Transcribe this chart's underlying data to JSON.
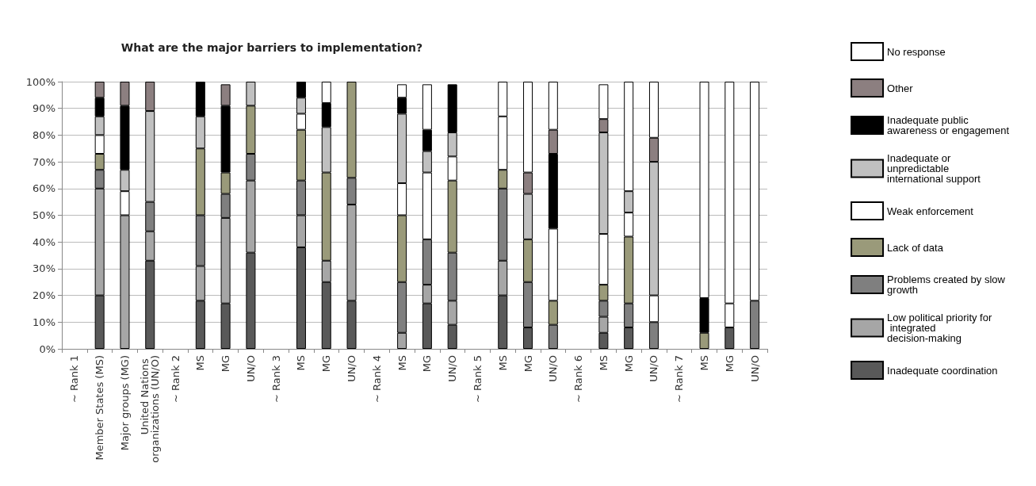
{
  "chart_data": {
    "type": "bar",
    "stacked": true,
    "title": "What are the major barriers to implementation?",
    "categories": [
      "~ Rank 1",
      "Member States (MS)",
      "Major groups (MG)",
      "United Nations organizations (UN/O)",
      "~ Rank 2",
      "MS",
      "MG",
      "UN/O",
      "~ Rank 3",
      "MS",
      "MG",
      "UN/O",
      "~ Rank 4",
      "MS",
      "MG",
      "UN/O",
      "~ Rank 5",
      "MS",
      "MG",
      "UN/O",
      "~ Rank 6",
      "MS",
      "MG",
      "UN/O",
      "~ Rank 7",
      "MS",
      "MG",
      "UN/O"
    ],
    "series": [
      {
        "name": "Inadequate coordination",
        "color": "#595959",
        "values": [
          null,
          20,
          0,
          33,
          null,
          18,
          17,
          36,
          null,
          38,
          25,
          18,
          null,
          0,
          17,
          9,
          null,
          20,
          8,
          0,
          null,
          6,
          8,
          0,
          null,
          0,
          8,
          0
        ]
      },
      {
        "name": "Low political priority for integrated decision-making",
        "color": "#a6a6a6",
        "values": [
          null,
          40,
          50,
          11,
          null,
          13,
          32,
          27,
          null,
          12,
          8,
          36,
          null,
          6,
          7,
          9,
          null,
          13,
          0,
          0,
          null,
          6,
          0,
          0,
          null,
          0,
          0,
          0
        ]
      },
      {
        "name": "Problems created by slow growth",
        "color": "#7f7f7f",
        "values": [
          null,
          7,
          0,
          11,
          null,
          19,
          9,
          10,
          null,
          13,
          0,
          10,
          null,
          19,
          17,
          18,
          null,
          27,
          17,
          9,
          null,
          6,
          9,
          10,
          null,
          0,
          0,
          18
        ]
      },
      {
        "name": "Lack of data",
        "color": "#9a9a7a",
        "values": [
          null,
          6,
          0,
          0,
          null,
          25,
          8,
          18,
          null,
          19,
          33,
          36,
          null,
          25,
          0,
          27,
          null,
          7,
          16,
          9,
          null,
          6,
          25,
          0,
          null,
          6,
          0,
          0
        ]
      },
      {
        "name": "Weak enforcement",
        "color": "#ffffff",
        "values": [
          null,
          7,
          9,
          0,
          null,
          0,
          0,
          0,
          null,
          6,
          0,
          0,
          null,
          12,
          25,
          9,
          null,
          20,
          0,
          27,
          null,
          19,
          9,
          10,
          null,
          0,
          9,
          0
        ]
      },
      {
        "name": "Inadequate or unpredictable international support",
        "color": "#c0c0c0",
        "values": [
          null,
          7,
          8,
          34,
          null,
          12,
          0,
          9,
          null,
          6,
          17,
          0,
          null,
          26,
          8,
          9,
          null,
          0,
          17,
          0,
          null,
          38,
          8,
          50,
          null,
          0,
          0,
          0
        ]
      },
      {
        "name": "Inadequate public awareness or engagement",
        "color": "#000000",
        "values": [
          null,
          7,
          24,
          0,
          null,
          13,
          25,
          0,
          null,
          6,
          9,
          0,
          null,
          6,
          8,
          18,
          null,
          0,
          0,
          28,
          null,
          0,
          0,
          0,
          null,
          13,
          0,
          0
        ]
      },
      {
        "name": "Other",
        "color": "#8c7f80",
        "values": [
          null,
          6,
          9,
          11,
          null,
          0,
          8,
          0,
          null,
          0,
          0,
          0,
          null,
          0,
          0,
          0,
          null,
          0,
          8,
          9,
          null,
          5,
          0,
          9,
          null,
          0,
          0,
          0
        ]
      },
      {
        "name": "No response",
        "color": "#ffffff",
        "values": [
          null,
          0,
          0,
          0,
          null,
          0,
          0,
          0,
          null,
          0,
          8,
          0,
          null,
          5,
          17,
          0,
          null,
          13,
          34,
          18,
          null,
          13,
          41,
          21,
          null,
          81,
          83,
          82
        ]
      }
    ],
    "ylim": [
      0,
      100
    ],
    "yticks": [
      {
        "value": 0,
        "label": "0%"
      },
      {
        "value": 10,
        "label": "10%"
      },
      {
        "value": 20,
        "label": "20%"
      },
      {
        "value": 30,
        "label": "30%"
      },
      {
        "value": 40,
        "label": "40%"
      },
      {
        "value": 50,
        "label": "50%"
      },
      {
        "value": 60,
        "label": "60%"
      },
      {
        "value": 70,
        "label": "70%"
      },
      {
        "value": 80,
        "label": "80%"
      },
      {
        "value": 90,
        "label": "90%"
      },
      {
        "value": 100,
        "label": "100%"
      }
    ],
    "grid": "y",
    "legend": "right"
  }
}
